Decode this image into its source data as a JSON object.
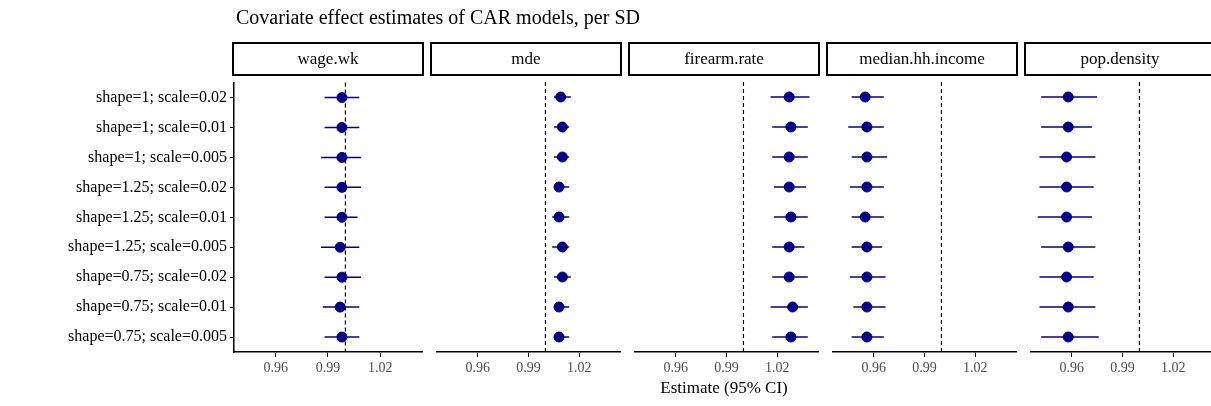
{
  "chart_data": [
    {
      "type": "scatter",
      "title": "Covariate effect estimates of CAR models, per SD",
      "subtitle": "wage.wk",
      "orientation": "horizontal",
      "marker": "circle",
      "grid": false,
      "categories": [
        "shape=1; scale=0.02",
        "shape=1; scale=0.01",
        "shape=1; scale=0.005",
        "shape=1.25; scale=0.02",
        "shape=1.25; scale=0.01",
        "shape=1.25; scale=0.005",
        "shape=0.75; scale=0.02",
        "shape=0.75; scale=0.01",
        "shape=0.75; scale=0.005"
      ],
      "series": [
        {
          "color": "#00008b",
          "values": [
            0.998,
            0.998,
            0.998,
            0.998,
            0.998,
            0.997,
            0.998,
            0.997,
            0.998
          ],
          "errors": [
            [
              0.988,
              1.008
            ],
            [
              0.988,
              1.008
            ],
            [
              0.986,
              1.009
            ],
            [
              0.988,
              1.009
            ],
            [
              0.988,
              1.007
            ],
            [
              0.986,
              1.008
            ],
            [
              0.988,
              1.009
            ],
            [
              0.987,
              1.008
            ],
            [
              0.988,
              1.008
            ]
          ]
        }
      ],
      "xlim": [
        0.936,
        1.044
      ],
      "xticks": [
        0.96,
        0.99,
        1.02
      ],
      "ref_lines": [
        {
          "axis": "x",
          "value": 1,
          "line_style": "dashed"
        }
      ]
    },
    {
      "type": "scatter",
      "subtitle": "mde",
      "orientation": "horizontal",
      "marker": "circle",
      "grid": false,
      "tick_labels": "x",
      "categories": [
        null,
        null,
        null,
        null,
        null,
        null,
        null,
        null,
        null
      ],
      "series": [
        {
          "color": "#00008b",
          "values": [
            1.009,
            1.01,
            1.01,
            1.008,
            1.008,
            1.01,
            1.01,
            1.008,
            1.008
          ],
          "errors": [
            [
              1.005,
              1.015
            ],
            [
              1.005,
              1.014
            ],
            [
              1.005,
              1.014
            ],
            [
              1.005,
              1.014
            ],
            [
              1.004,
              1.014
            ],
            [
              1.004,
              1.014
            ],
            [
              1.005,
              1.015
            ],
            [
              1.005,
              1.014
            ],
            [
              1.005,
              1.014
            ]
          ]
        }
      ],
      "xlim": [
        0.936,
        1.044
      ],
      "xticks": [
        0.96,
        0.99,
        1.02
      ],
      "ref_lines": [
        {
          "axis": "x",
          "value": 1,
          "line_style": "dashed"
        }
      ]
    },
    {
      "type": "scatter",
      "subtitle": "firearm.rate",
      "xlabel": "Estimate (95% CI)",
      "orientation": "horizontal",
      "marker": "circle",
      "grid": false,
      "tick_labels": "x",
      "categories": [
        null,
        null,
        null,
        null,
        null,
        null,
        null,
        null,
        null
      ],
      "series": [
        {
          "color": "#00008b",
          "values": [
            1.027,
            1.028,
            1.027,
            1.027,
            1.028,
            1.027,
            1.027,
            1.029,
            1.028
          ],
          "errors": [
            [
              1.016,
              1.039
            ],
            [
              1.017,
              1.038
            ],
            [
              1.017,
              1.038
            ],
            [
              1.018,
              1.037
            ],
            [
              1.018,
              1.038
            ],
            [
              1.017,
              1.036
            ],
            [
              1.017,
              1.038
            ],
            [
              1.016,
              1.038
            ],
            [
              1.017,
              1.038
            ]
          ]
        }
      ],
      "xlim": [
        0.936,
        1.044
      ],
      "xticks": [
        0.96,
        0.99,
        1.02
      ],
      "ref_lines": [
        {
          "axis": "x",
          "value": 1,
          "line_style": "dashed"
        }
      ]
    },
    {
      "type": "scatter",
      "subtitle": "median.hh.income",
      "orientation": "horizontal",
      "marker": "circle",
      "grid": false,
      "tick_labels": "x",
      "categories": [
        null,
        null,
        null,
        null,
        null,
        null,
        null,
        null,
        null
      ],
      "series": [
        {
          "color": "#00008b",
          "values": [
            0.955,
            0.956,
            0.956,
            0.956,
            0.955,
            0.956,
            0.956,
            0.956,
            0.956
          ],
          "errors": [
            [
              0.947,
              0.966
            ],
            [
              0.945,
              0.966
            ],
            [
              0.947,
              0.968
            ],
            [
              0.946,
              0.966
            ],
            [
              0.947,
              0.966
            ],
            [
              0.947,
              0.965
            ],
            [
              0.946,
              0.967
            ],
            [
              0.948,
              0.967
            ],
            [
              0.947,
              0.966
            ]
          ]
        }
      ],
      "xlim": [
        0.936,
        1.044
      ],
      "xticks": [
        0.96,
        0.99,
        1.02
      ],
      "ref_lines": [
        {
          "axis": "x",
          "value": 1,
          "line_style": "dashed"
        }
      ]
    },
    {
      "type": "scatter",
      "subtitle": "pop.density",
      "orientation": "horizontal",
      "marker": "circle",
      "grid": false,
      "tick_labels": "x",
      "categories": [
        null,
        null,
        null,
        null,
        null,
        null,
        null,
        null,
        null
      ],
      "series": [
        {
          "color": "#00008b",
          "values": [
            0.958,
            0.958,
            0.957,
            0.957,
            0.957,
            0.958,
            0.957,
            0.958,
            0.958
          ],
          "errors": [
            [
              0.942,
              0.975
            ],
            [
              0.942,
              0.972
            ],
            [
              0.941,
              0.974
            ],
            [
              0.941,
              0.973
            ],
            [
              0.94,
              0.972
            ],
            [
              0.942,
              0.974
            ],
            [
              0.941,
              0.973
            ],
            [
              0.941,
              0.974
            ],
            [
              0.942,
              0.976
            ]
          ]
        }
      ],
      "xlim": [
        0.936,
        1.044
      ],
      "xticks": [
        0.96,
        0.99,
        1.02
      ],
      "ref_lines": [
        {
          "axis": "x",
          "value": 1,
          "line_style": "dashed"
        }
      ]
    }
  ]
}
